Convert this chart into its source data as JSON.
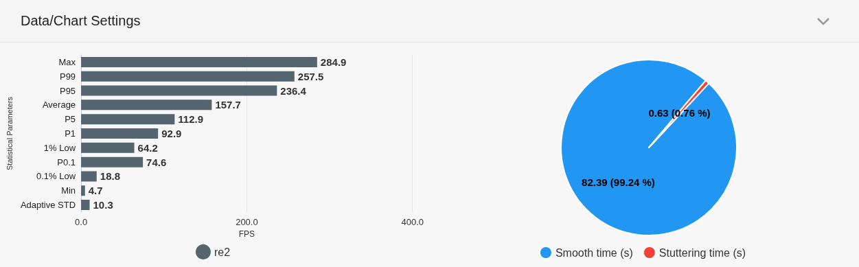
{
  "chart_data": [
    {
      "type": "bar",
      "title": "Data/Chart Settings",
      "orientation": "horizontal",
      "categories": [
        "Max",
        "P99",
        "P95",
        "Average",
        "P5",
        "P1",
        "1% Low",
        "P0.1",
        "0.1% Low",
        "Min",
        "Adaptive STD"
      ],
      "series": [
        {
          "name": "re2",
          "color": "#546570",
          "values": [
            284.9,
            257.5,
            236.4,
            157.7,
            112.9,
            92.9,
            64.2,
            74.6,
            18.8,
            4.7,
            10.3
          ]
        }
      ],
      "xlim": [
        0,
        400
      ],
      "xticks": [
        {
          "value": 0,
          "label": "0.0"
        },
        {
          "value": 200,
          "label": "200.0"
        },
        {
          "value": 400,
          "label": "400.0"
        }
      ],
      "xlabel": "FPS",
      "ylabel": "Statistical Parameters",
      "grid": "x",
      "legend": "bottom",
      "data_labels": true
    },
    {
      "type": "pie",
      "categories": [
        "Smooth time (s)",
        "Stuttering time (s)"
      ],
      "values": [
        82.39,
        0.63
      ],
      "colors": [
        "#2196f3",
        "#f44336"
      ],
      "value_labels": [
        "82.39 (99.24 %)",
        "0.63 (0.76 %)"
      ],
      "legend": "bottom"
    }
  ]
}
